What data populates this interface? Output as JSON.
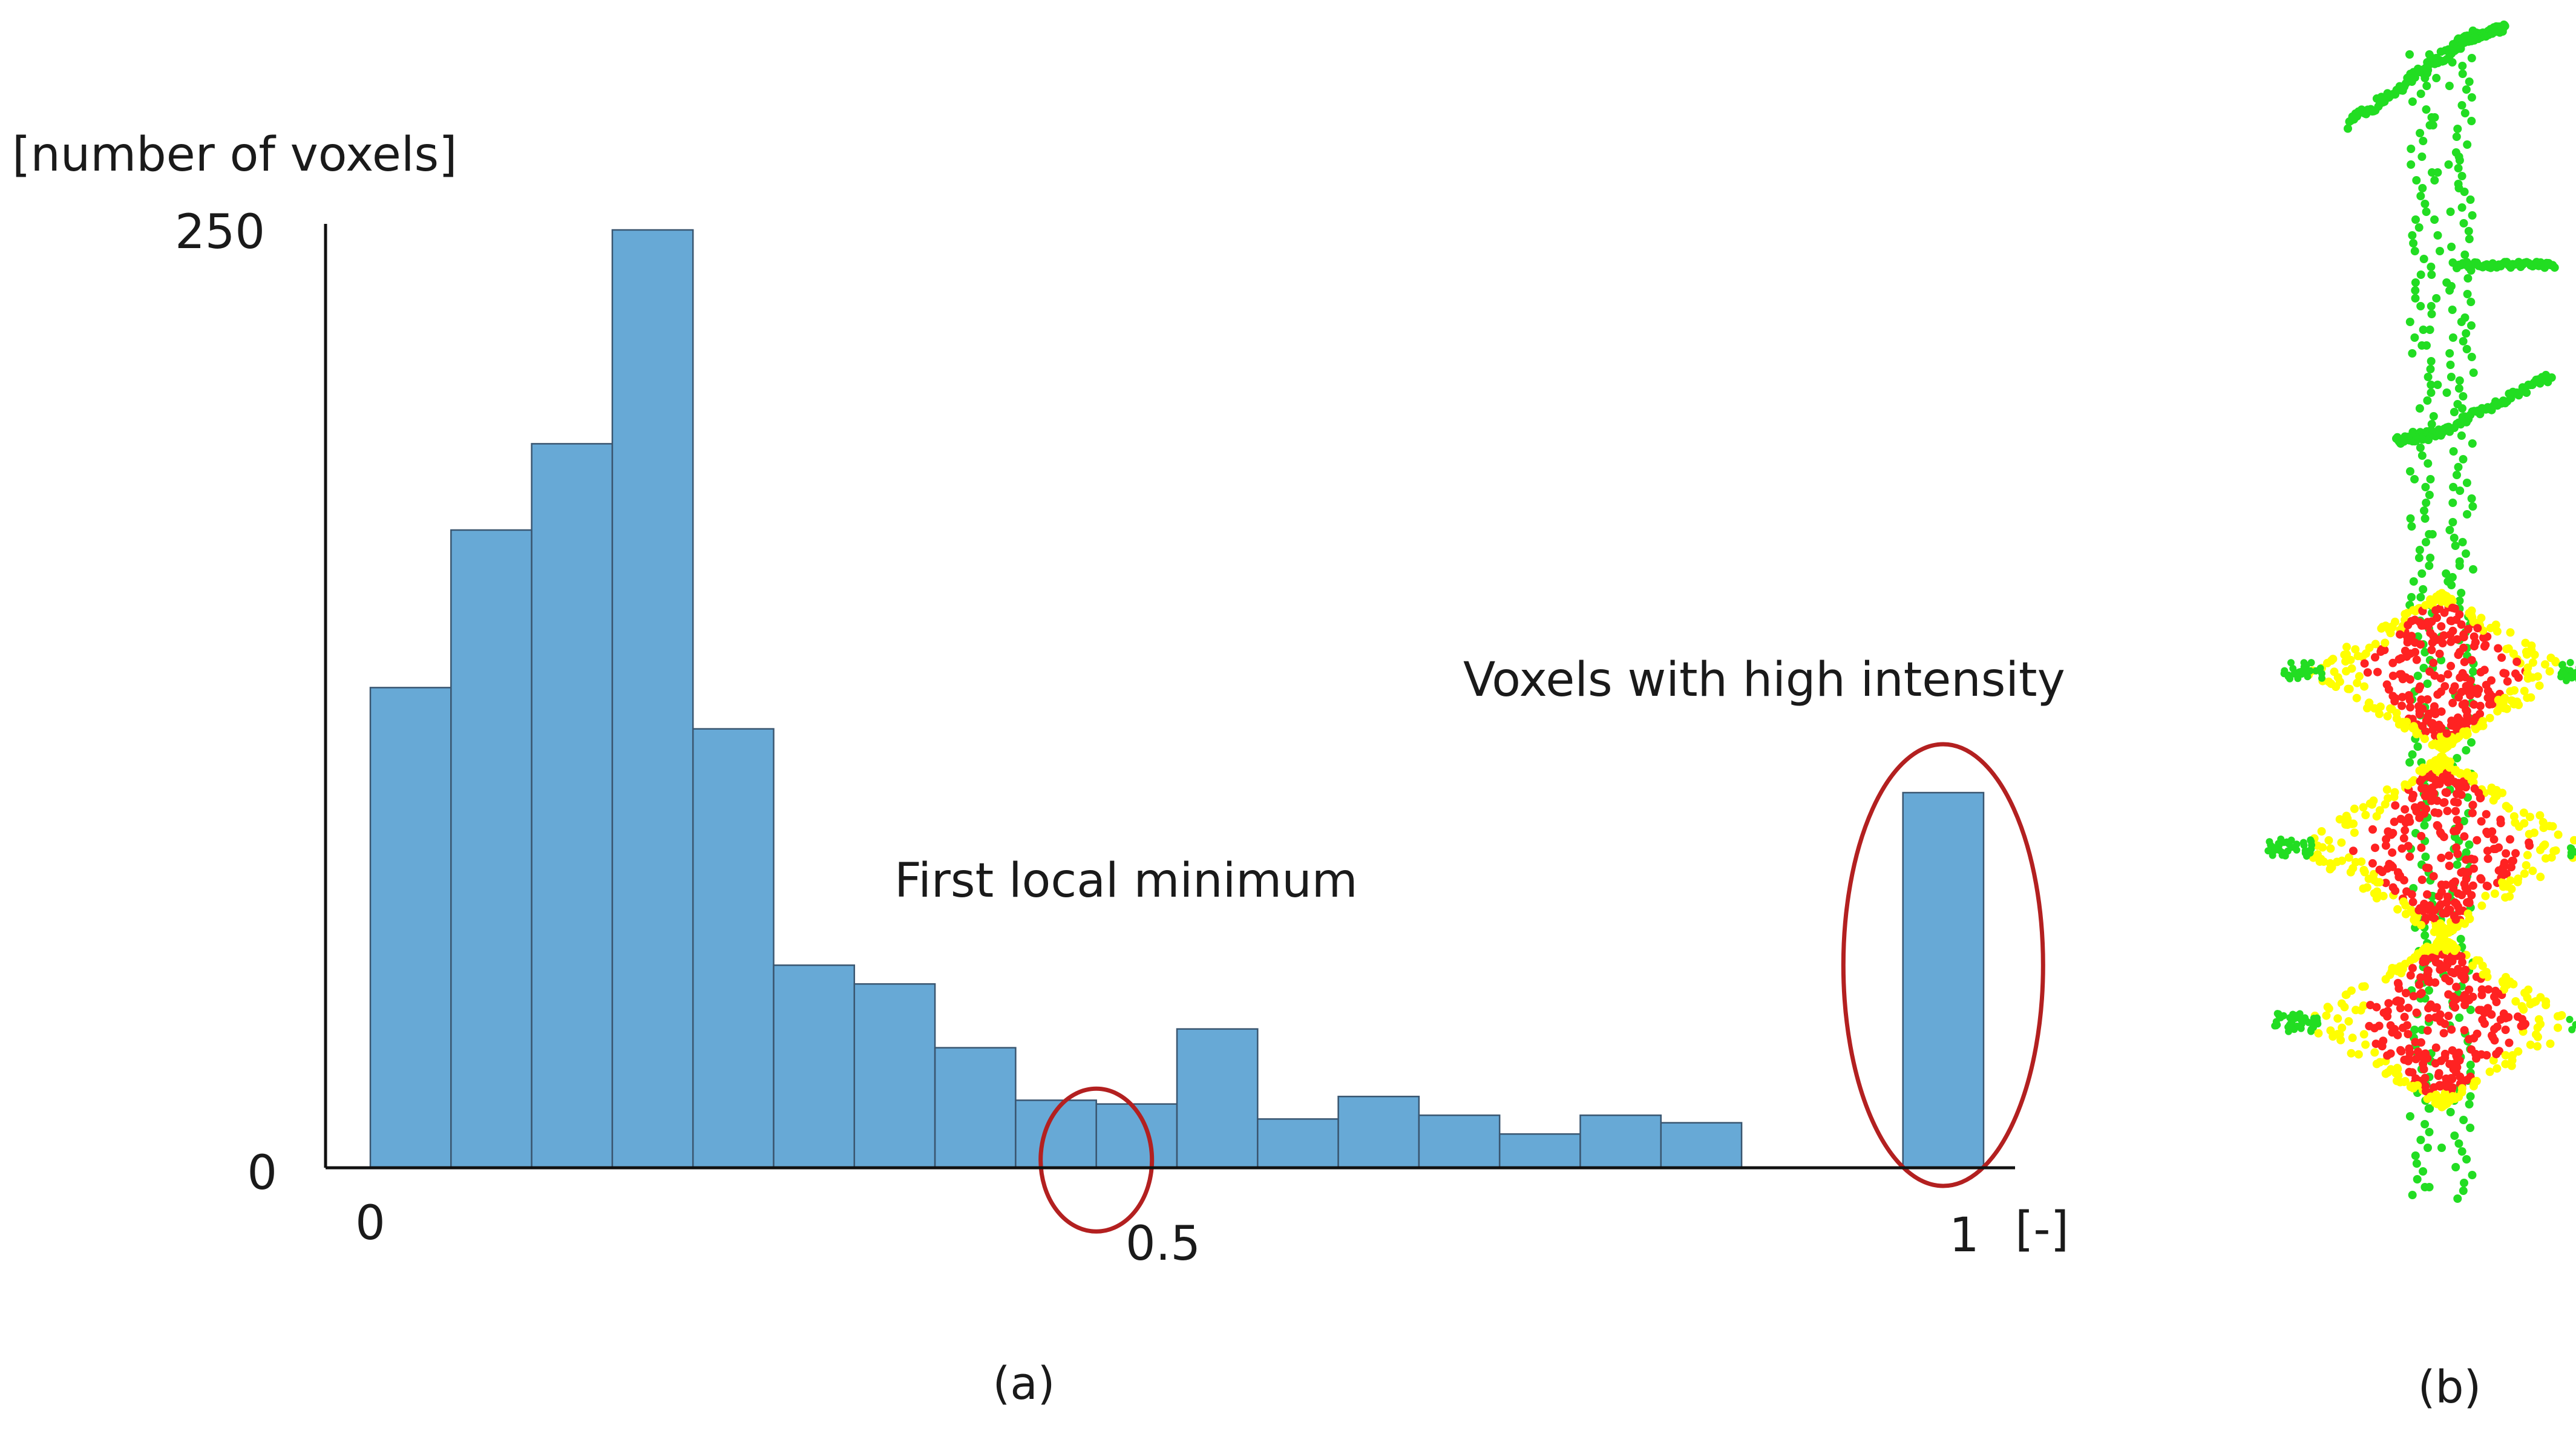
{
  "chart_data": {
    "type": "bar",
    "panel_caption": "(a)",
    "ylabel": "[number of voxels]",
    "xlabel": "[-]",
    "ylim": [
      0,
      250
    ],
    "xlim": [
      0,
      1
    ],
    "y_ticks": [
      "0",
      "250"
    ],
    "x_ticks": [
      {
        "value": 0,
        "label": "0"
      },
      {
        "value": 0.5,
        "label": "0.5"
      },
      {
        "value": 1,
        "label": "1"
      }
    ],
    "bin_width": 0.05,
    "bins": [
      {
        "x0": 0.0,
        "value": 128
      },
      {
        "x0": 0.05,
        "value": 170
      },
      {
        "x0": 0.1,
        "value": 193
      },
      {
        "x0": 0.15,
        "value": 250
      },
      {
        "x0": 0.2,
        "value": 117
      },
      {
        "x0": 0.25,
        "value": 54
      },
      {
        "x0": 0.3,
        "value": 49
      },
      {
        "x0": 0.35,
        "value": 32
      },
      {
        "x0": 0.4,
        "value": 18
      },
      {
        "x0": 0.45,
        "value": 17
      },
      {
        "x0": 0.5,
        "value": 37
      },
      {
        "x0": 0.55,
        "value": 13
      },
      {
        "x0": 0.6,
        "value": 19
      },
      {
        "x0": 0.65,
        "value": 14
      },
      {
        "x0": 0.7,
        "value": 9
      },
      {
        "x0": 0.75,
        "value": 14
      },
      {
        "x0": 0.8,
        "value": 12
      },
      {
        "x0": 0.85,
        "value": 0
      },
      {
        "x0": 0.9,
        "value": 0
      },
      {
        "x0": 0.95,
        "value": 100
      }
    ],
    "bar_color": "#67a9d6",
    "annotations": [
      {
        "text": "First local minimum",
        "highlight_bin": 9
      },
      {
        "text": "Voxels with high intensity",
        "highlight_bin": 19
      }
    ],
    "highlight_color": "#b32020"
  },
  "panel_b": {
    "caption": "(b)",
    "colors": {
      "stem": "#22dd22",
      "shell": "#ffff00",
      "core": "#ff2222"
    }
  }
}
